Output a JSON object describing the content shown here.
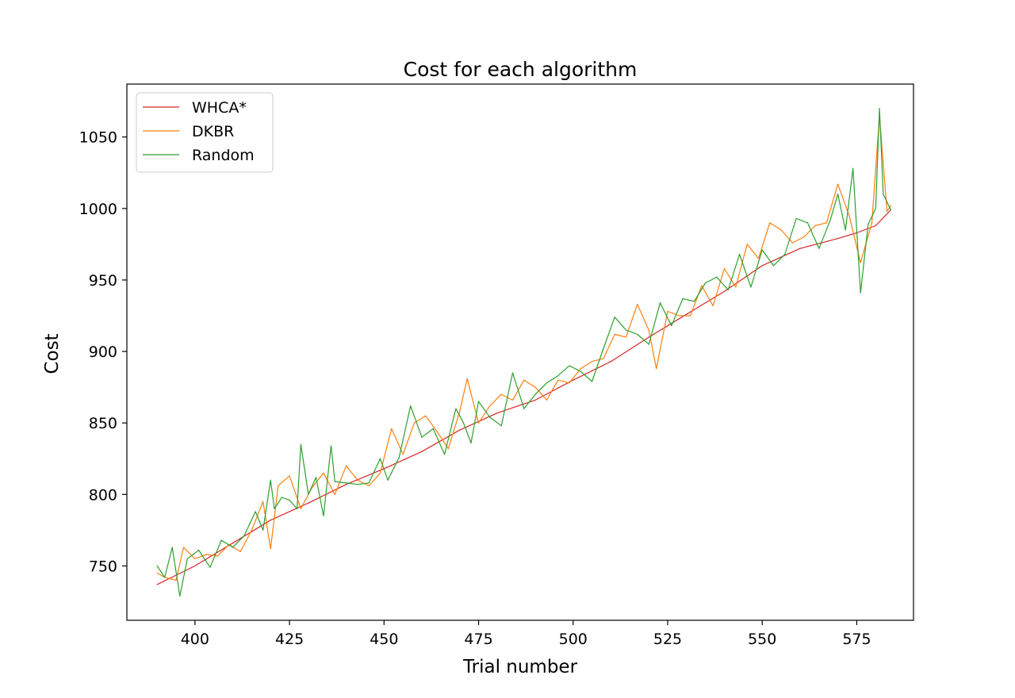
{
  "chart_data": {
    "type": "line",
    "title": "Cost for each algorithm",
    "xlabel": "Trial number",
    "ylabel": "Cost",
    "xlim": [
      382,
      590
    ],
    "ylim": [
      712,
      1087
    ],
    "xticks": [
      400,
      425,
      450,
      475,
      500,
      525,
      550,
      575
    ],
    "yticks": [
      750,
      800,
      850,
      900,
      950,
      1000,
      1050
    ],
    "grid": false,
    "legend_position": "top-left",
    "colors": {
      "WHCA*": "#d62728",
      "DKBR": "#ff7f0e",
      "Random": "#2ca02c"
    },
    "series": [
      {
        "name": "WHCA*",
        "x": [
          390,
          400,
          410,
          420,
          430,
          440,
          450,
          460,
          470,
          480,
          490,
          500,
          510,
          520,
          530,
          540,
          550,
          560,
          570,
          575,
          580,
          584
        ],
        "values": [
          737,
          750,
          766,
          782,
          794,
          807,
          818,
          830,
          845,
          857,
          866,
          880,
          893,
          910,
          926,
          942,
          960,
          972,
          979,
          983,
          988,
          999
        ]
      },
      {
        "name": "DKBR",
        "x": [
          390,
          392,
          395,
          397,
          400,
          403,
          406,
          409,
          412,
          415,
          418,
          420,
          422,
          425,
          428,
          431,
          434,
          437,
          440,
          443,
          446,
          449,
          452,
          455,
          458,
          461,
          464,
          467,
          470,
          472,
          475,
          478,
          481,
          484,
          487,
          490,
          493,
          496,
          499,
          502,
          505,
          508,
          511,
          514,
          517,
          520,
          522,
          525,
          528,
          531,
          534,
          537,
          540,
          543,
          546,
          549,
          552,
          555,
          558,
          561,
          564,
          567,
          570,
          573,
          576,
          579,
          581,
          583,
          584
        ],
        "values": [
          745,
          742,
          740,
          763,
          755,
          758,
          757,
          765,
          760,
          775,
          795,
          762,
          806,
          813,
          790,
          805,
          815,
          800,
          820,
          810,
          806,
          815,
          846,
          828,
          850,
          855,
          844,
          832,
          858,
          881,
          850,
          862,
          870,
          866,
          880,
          875,
          866,
          880,
          878,
          888,
          893,
          895,
          912,
          910,
          933,
          915,
          888,
          928,
          925,
          925,
          946,
          932,
          958,
          945,
          975,
          965,
          990,
          985,
          976,
          980,
          988,
          990,
          1017,
          995,
          962,
          990,
          1065,
          998,
          1002
        ]
      },
      {
        "name": "Random",
        "x": [
          390,
          392,
          394,
          396,
          398,
          401,
          404,
          407,
          410,
          413,
          416,
          418,
          420,
          421,
          423,
          425,
          427,
          428,
          430,
          432,
          434,
          436,
          437,
          440,
          443,
          446,
          449,
          451,
          454,
          457,
          460,
          463,
          466,
          469,
          471,
          473,
          475,
          478,
          481,
          484,
          487,
          490,
          493,
          496,
          499,
          502,
          505,
          508,
          511,
          514,
          517,
          520,
          523,
          526,
          529,
          532,
          535,
          538,
          541,
          544,
          547,
          550,
          553,
          556,
          559,
          562,
          565,
          568,
          570,
          572,
          574,
          576,
          578,
          580,
          581,
          582,
          584
        ],
        "values": [
          750,
          742,
          763,
          729,
          755,
          761,
          749,
          768,
          763,
          771,
          788,
          775,
          810,
          790,
          798,
          796,
          790,
          835,
          800,
          812,
          785,
          834,
          809,
          808,
          807,
          808,
          825,
          810,
          826,
          862,
          840,
          846,
          828,
          860,
          850,
          836,
          865,
          854,
          848,
          885,
          860,
          870,
          878,
          883,
          890,
          886,
          879,
          902,
          924,
          915,
          912,
          905,
          934,
          918,
          937,
          935,
          948,
          952,
          943,
          968,
          945,
          971,
          960,
          968,
          993,
          990,
          972,
          992,
          1010,
          985,
          1028,
          941,
          989,
          1000,
          1070,
          1010,
          999
        ]
      }
    ]
  }
}
